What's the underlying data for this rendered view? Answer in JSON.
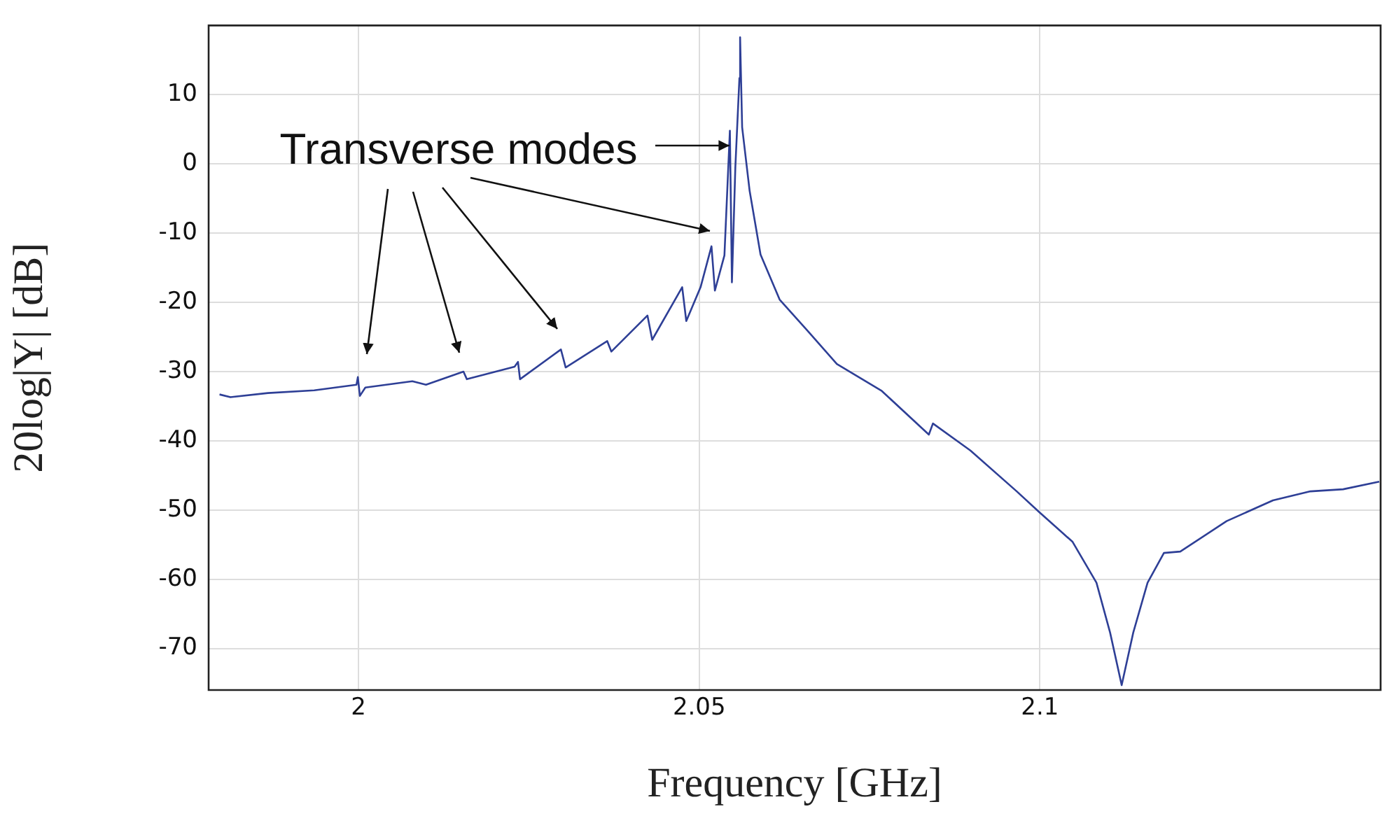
{
  "chart_data": {
    "type": "line",
    "xlabel": "Frequency [GHz]",
    "ylabel": "20log|Y| [dB]",
    "xlim": [
      1.978,
      2.15
    ],
    "ylim": [
      -76,
      20
    ],
    "xticks": [
      2,
      2.05,
      2.1
    ],
    "yticks": [
      -70,
      -60,
      -50,
      -40,
      -30,
      -20,
      -10,
      0,
      10
    ],
    "grid": true,
    "legend": false,
    "marker": "none",
    "line_style": "solid",
    "annotations": [
      {
        "text": "Transverse modes",
        "x": 2.0545,
        "y": 0.6
      }
    ],
    "series": [
      {
        "color": "#2e3f96",
        "x": [
          1.9796,
          1.9812,
          1.9867,
          1.9935,
          1.9997,
          1.9999,
          2.0002,
          2.001,
          2.0079,
          2.0099,
          2.0154,
          2.0159,
          2.0229,
          2.0234,
          2.0237,
          2.0297,
          2.0304,
          2.0365,
          2.0371,
          2.0424,
          2.0431,
          2.0475,
          2.0481,
          2.0502,
          2.0518,
          2.0523,
          2.0537,
          2.0545,
          2.0548,
          2.0553,
          2.0559,
          2.056,
          2.0563,
          2.0574,
          2.059,
          2.0618,
          2.0659,
          2.0702,
          2.0768,
          2.0837,
          2.0843,
          2.0898,
          2.0966,
          2.0999,
          2.1048,
          2.1083,
          2.1103,
          2.112,
          2.1137,
          2.1158,
          2.1182,
          2.1206,
          2.1274,
          2.1342,
          2.1397,
          2.1445,
          2.1498
        ],
        "values": [
          -33.3,
          -33.7,
          -33.1,
          -32.7,
          -31.9,
          -30.8,
          -33.5,
          -32.3,
          -31.4,
          -31.9,
          -30.0,
          -31.1,
          -29.3,
          -28.6,
          -31.1,
          -26.8,
          -29.4,
          -25.6,
          -27.1,
          -21.9,
          -25.4,
          -17.8,
          -22.7,
          -17.8,
          -11.9,
          -18.3,
          -13.2,
          4.8,
          -17.1,
          -0.5,
          12.4,
          18.3,
          5.3,
          -3.9,
          -13.1,
          -19.6,
          -24.1,
          -28.9,
          -32.8,
          -39.1,
          -37.5,
          -41.4,
          -47.3,
          -50.3,
          -54.6,
          -60.5,
          -67.7,
          -75.3,
          -67.7,
          -60.5,
          -56.2,
          -56.0,
          -51.6,
          -48.6,
          -47.3,
          -47.0,
          -45.9
        ]
      }
    ]
  }
}
